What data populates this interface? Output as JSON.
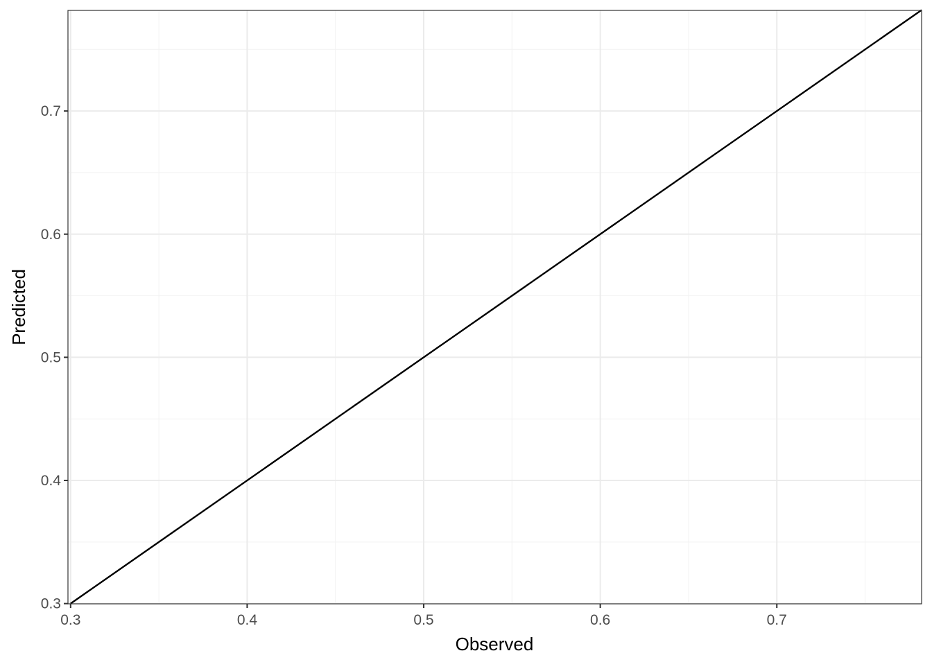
{
  "chart_data": {
    "type": "line",
    "title": "",
    "xlabel": "Observed",
    "ylabel": "Predicted",
    "xlim": [
      0.2985,
      0.782
    ],
    "ylim": [
      0.2998,
      0.7817
    ],
    "xticks": [
      0.3,
      0.4,
      0.5,
      0.6,
      0.7
    ],
    "yticks": [
      0.3,
      0.4,
      0.5,
      0.6,
      0.7
    ],
    "xtick_labels": [
      "0.3",
      "0.4",
      "0.5",
      "0.6",
      "0.7"
    ],
    "ytick_labels": [
      "0.3",
      "0.4",
      "0.5",
      "0.6",
      "0.7"
    ],
    "grid": true,
    "series": [
      {
        "x": [
          0.3,
          0.782
        ],
        "y": [
          0.3,
          0.782
        ],
        "color": "#000000"
      }
    ]
  }
}
